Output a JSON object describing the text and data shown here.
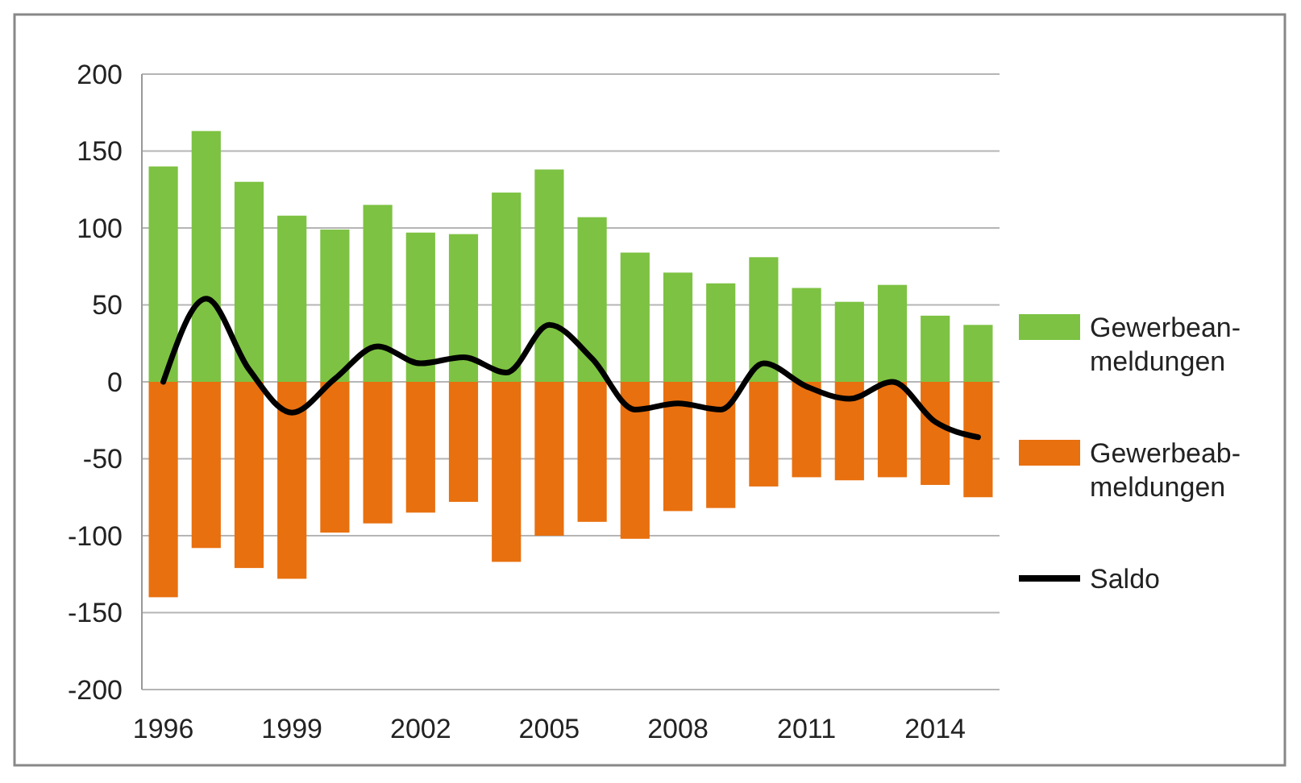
{
  "chart_data": {
    "type": "bar",
    "stacked": true,
    "categories": [
      "1996",
      null,
      null,
      "1999",
      null,
      null,
      "2002",
      null,
      null,
      "2005",
      null,
      null,
      "2008",
      null,
      null,
      "2011",
      null,
      null,
      "2014",
      null
    ],
    "series": [
      {
        "name": "Gewerbean-meldungen",
        "color": "#7dc242",
        "values": [
          140,
          163,
          130,
          108,
          99,
          115,
          97,
          96,
          123,
          138,
          107,
          84,
          71,
          64,
          81,
          61,
          52,
          63,
          43,
          37
        ]
      },
      {
        "name": "Gewerbeab-meldungen",
        "color": "#e8700f",
        "values": [
          -140,
          -108,
          -121,
          -128,
          -98,
          -92,
          -85,
          -78,
          -117,
          -100,
          -91,
          -102,
          -84,
          -82,
          -68,
          -62,
          -64,
          -62,
          -67,
          -75
        ]
      },
      {
        "name": "Saldo",
        "type": "line",
        "color": "#000000",
        "values": [
          0,
          54,
          8,
          -20,
          2,
          23,
          12,
          16,
          6,
          37,
          15,
          -18,
          -14,
          -18,
          12,
          -3,
          -11,
          0,
          -26,
          -36
        ]
      }
    ],
    "ylim": [
      -200,
      200
    ],
    "yticks": [
      -200,
      -150,
      -100,
      -50,
      0,
      50,
      100,
      150,
      200
    ],
    "grid": "y",
    "legend": "right",
    "marker": "none"
  }
}
